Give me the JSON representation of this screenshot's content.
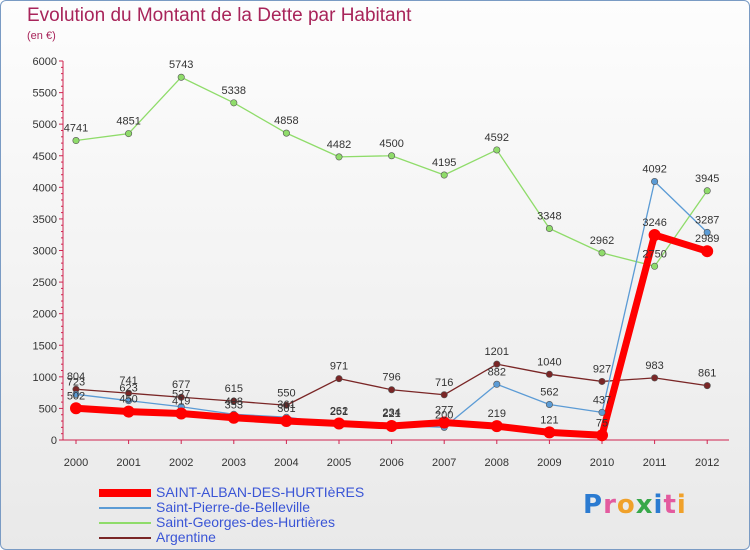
{
  "title": "Evolution du Montant de la Dette par Habitant",
  "subtitle": "(en €)",
  "logo_text": "Proxiti",
  "chart_data": {
    "type": "line",
    "x": [
      "2000",
      "2001",
      "2002",
      "2003",
      "2004",
      "2005",
      "2006",
      "2007",
      "2008",
      "2009",
      "2010",
      "2011",
      "2012"
    ],
    "ylim": [
      0,
      6000
    ],
    "yticks": [
      0,
      500,
      1000,
      1500,
      2000,
      2500,
      3000,
      3500,
      4000,
      4500,
      5000,
      5500,
      6000
    ],
    "grid": false,
    "legend_position": "bottom-left",
    "series": [
      {
        "name": "SAINT-ALBAN-DES-HURTIèRES",
        "color": "#ff0000",
        "values": [
          502,
          450,
          419,
          353,
          301,
          262,
          221,
          277,
          219,
          121,
          75,
          3246,
          2989
        ],
        "labels": [
          "502",
          "450",
          "419",
          "353",
          "301",
          "262",
          "221",
          "277",
          "219",
          "121",
          "75",
          "3246",
          "2989"
        ]
      },
      {
        "name": "Saint-Pierre-de-Belleville",
        "color": "#5b9bd5",
        "values": [
          723,
          623,
          527,
          408,
          361,
          251,
          234,
          200,
          882,
          562,
          437,
          4092,
          3287
        ],
        "labels": [
          "723",
          "623",
          "527",
          "408",
          "361",
          "251",
          "234",
          "200",
          "882",
          "562",
          "437",
          "4092",
          "3287"
        ]
      },
      {
        "name": "Saint-Georges-des-Hurtières",
        "color": "#8fdc6a",
        "values": [
          4741,
          4851,
          5743,
          5338,
          4858,
          4482,
          4500,
          4195,
          4592,
          3348,
          2962,
          2750,
          3945
        ],
        "labels": [
          "4741",
          "4851",
          "5743",
          "5338",
          "4858",
          "4482",
          "4500",
          "4195",
          "4592",
          "3348",
          "2962",
          "2750",
          "3945"
        ]
      },
      {
        "name": "Argentine",
        "color": "#7a2626",
        "values": [
          804,
          741,
          677,
          615,
          550,
          971,
          796,
          716,
          1201,
          1040,
          927,
          983,
          861
        ],
        "labels": [
          "804",
          "741",
          "677",
          "615",
          "550",
          "971",
          "796",
          "716",
          "1201",
          "1040",
          "927",
          "983",
          "861"
        ]
      }
    ]
  }
}
